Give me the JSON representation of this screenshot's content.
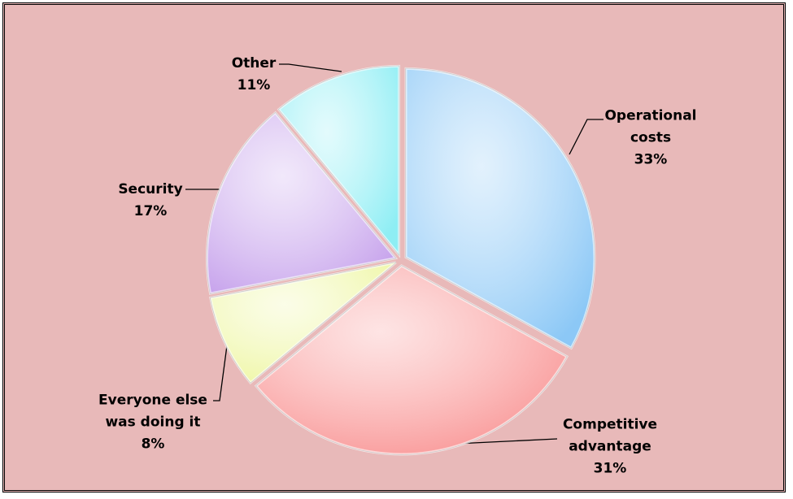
{
  "chart_data": {
    "type": "pie",
    "categories": [
      "Operational costs",
      "Competitive advantage",
      "Everyone else was doing it",
      "Security",
      "Other"
    ],
    "values": [
      33,
      31,
      8,
      17,
      11
    ],
    "value_labels": [
      "33%",
      "31%",
      "8%",
      "17%",
      "11%"
    ],
    "colors": [
      "#8cc8f6",
      "#f99393",
      "#eef6a2",
      "#c7a3ec",
      "#8eeef4"
    ]
  }
}
